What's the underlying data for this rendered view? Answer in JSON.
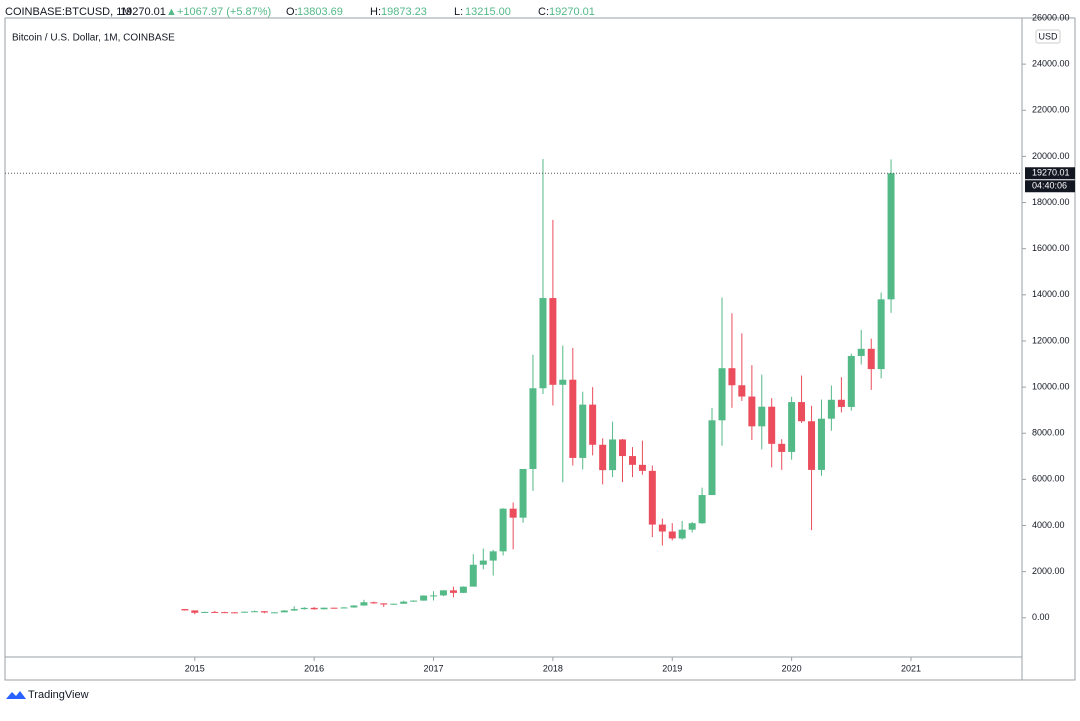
{
  "header": {
    "symbol": "COINBASE:BTCUSD, 1M",
    "last": "19270.01",
    "change": "+1067.97 (+5.87%)",
    "ohlc": [
      {
        "label": "O:",
        "value": "13803.69"
      },
      {
        "label": "H:",
        "value": "19873.23"
      },
      {
        "label": "L:",
        "value": "13215.00"
      },
      {
        "label": "C:",
        "value": "19270.01"
      }
    ]
  },
  "chart_data": {
    "type": "candlestick",
    "subtitle": "Bitcoin / U.S. Dollar, 1M, COINBASE",
    "currency": "USD",
    "last_price_label": "19270.01",
    "countdown": "04:40:06",
    "up_color": "#53b987",
    "down_color": "#eb4d5c",
    "xlim": [
      2013.41,
      2021.93
    ],
    "xticks": [
      2015,
      2016,
      2017,
      2018,
      2019,
      2020,
      2021
    ],
    "ylim": [
      -1700,
      26000
    ],
    "yticks": [
      {
        "value": 0,
        "label": "0.00"
      },
      {
        "value": 2000,
        "label": "2000.00"
      },
      {
        "value": 4000,
        "label": "4000.00"
      },
      {
        "value": 6000,
        "label": "6000.00"
      },
      {
        "value": 8000,
        "label": "8000.00"
      },
      {
        "value": 10000,
        "label": "10000.00"
      },
      {
        "value": 12000,
        "label": "12000.00"
      },
      {
        "value": 14000,
        "label": "14000.00"
      },
      {
        "value": 16000,
        "label": "16000.00"
      },
      {
        "value": 18000,
        "label": "18000.00"
      },
      {
        "value": 20000,
        "label": "20000.00"
      },
      {
        "value": 22000,
        "label": "22000.00"
      },
      {
        "value": 24000,
        "label": "24000.00"
      },
      {
        "value": 26000,
        "label": "26000.00"
      }
    ],
    "x": [
      2014.917,
      2015,
      2015.083,
      2015.167,
      2015.25,
      2015.333,
      2015.417,
      2015.5,
      2015.583,
      2015.667,
      2015.75,
      2015.833,
      2015.917,
      2016,
      2016.083,
      2016.167,
      2016.25,
      2016.333,
      2016.417,
      2016.5,
      2016.583,
      2016.667,
      2016.75,
      2016.833,
      2016.917,
      2017,
      2017.083,
      2017.167,
      2017.25,
      2017.333,
      2017.417,
      2017.5,
      2017.583,
      2017.667,
      2017.75,
      2017.833,
      2017.917,
      2018,
      2018.083,
      2018.167,
      2018.25,
      2018.333,
      2018.417,
      2018.5,
      2018.583,
      2018.667,
      2018.75,
      2018.833,
      2018.917,
      2019,
      2019.083,
      2019.167,
      2019.25,
      2019.333,
      2019.417,
      2019.5,
      2019.583,
      2019.667,
      2019.75,
      2019.833,
      2019.917,
      2020,
      2020.083,
      2020.167,
      2020.25,
      2020.333,
      2020.417,
      2020.5,
      2020.583,
      2020.667,
      2020.75,
      2020.833
    ],
    "open": [
      378,
      320,
      217,
      254,
      244,
      236,
      230,
      263,
      284,
      230,
      236,
      314,
      377,
      430,
      369,
      437,
      416,
      448,
      531,
      673,
      624,
      575,
      609,
      700,
      745,
      964,
      970,
      1190,
      1080,
      1350,
      2300,
      2480,
      2880,
      4730,
      4340,
      6450,
      9950,
      13860,
      10100,
      10320,
      6930,
      9240,
      7500,
      6400,
      7730,
      7010,
      6630,
      6370,
      4040,
      3740,
      3440,
      3820,
      4100,
      5320,
      8560,
      10820,
      10080,
      9590,
      8300,
      9150,
      7540,
      7190,
      9350,
      8520,
      6410,
      8630,
      9450,
      9140,
      11350,
      11660,
      10780,
      13803.69
    ],
    "high": [
      380,
      320,
      265,
      300,
      260,
      248,
      268,
      315,
      285,
      245,
      335,
      500,
      465,
      465,
      445,
      440,
      466,
      550,
      780,
      700,
      628,
      620,
      740,
      755,
      975,
      1150,
      1200,
      1350,
      1360,
      2760,
      3000,
      2950,
      4750,
      5000,
      6450,
      11400,
      19890,
      17250,
      11800,
      11700,
      9800,
      10000,
      7780,
      8500,
      7750,
      7400,
      7680,
      6600,
      4300,
      4100,
      4200,
      4150,
      5640,
      9100,
      13880,
      13200,
      12330,
      10950,
      10540,
      9520,
      7740,
      9580,
      10500,
      9190,
      9460,
      10070,
      10430,
      11450,
      12480,
      12100,
      14100,
      19873.23
    ],
    "low": [
      310,
      152,
      212,
      240,
      214,
      227,
      220,
      253,
      198,
      225,
      236,
      300,
      350,
      350,
      365,
      395,
      410,
      435,
      522,
      610,
      470,
      570,
      603,
      690,
      740,
      750,
      935,
      890,
      1070,
      1350,
      2100,
      1830,
      2700,
      2970,
      4120,
      5500,
      9700,
      9200,
      5870,
      6600,
      6430,
      7040,
      5780,
      6100,
      5880,
      6100,
      6200,
      3500,
      3130,
      3350,
      3390,
      3700,
      4070,
      5330,
      7460,
      9100,
      9400,
      7710,
      7300,
      6520,
      6410,
      6850,
      8450,
      3800,
      6160,
      8110,
      8900,
      8980,
      10980,
      9880,
      10380,
      13215
    ],
    "close": [
      320,
      217,
      254,
      244,
      236,
      230,
      263,
      284,
      230,
      236,
      314,
      377,
      430,
      369,
      437,
      416,
      448,
      531,
      673,
      624,
      575,
      609,
      700,
      745,
      964,
      970,
      1190,
      1080,
      1350,
      2300,
      2480,
      2880,
      4730,
      4340,
      6450,
      9950,
      13860,
      10100,
      10320,
      6930,
      9240,
      7500,
      6400,
      7730,
      7010,
      6630,
      6370,
      4040,
      3740,
      3440,
      3820,
      4100,
      5320,
      8560,
      10820,
      10080,
      9590,
      8300,
      9150,
      7540,
      7190,
      9350,
      8520,
      6410,
      8630,
      9450,
      9140,
      11350,
      11660,
      10780,
      13803.69,
      19270.01
    ]
  }
}
